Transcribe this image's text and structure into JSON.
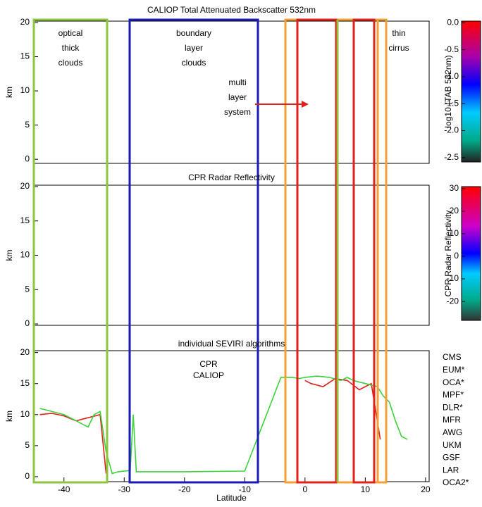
{
  "charts": [
    {
      "type": "line",
      "title": "CALIOP Total Attenuated Backscatter 532nm",
      "ylabel": "km",
      "xlim": [
        -45,
        20.6
      ],
      "ylim": [
        -0.6,
        20.2
      ],
      "yticks": [
        0,
        5,
        10,
        15,
        20
      ],
      "colorbar": {
        "label": "log10 (TAB 532nm)",
        "lim": [
          -2.58,
          0.03
        ],
        "ticks": [
          {
            "value": 0,
            "label": "0.0"
          },
          -0.5,
          {
            "value": -1,
            "label": "-1.0"
          },
          -1.5,
          {
            "value": -2,
            "label": "-2.0"
          },
          -2.5
        ]
      },
      "annotations": [
        {
          "lines": [
            "optical",
            "thick",
            "clouds"
          ],
          "color": "#8cc63f"
        },
        {
          "lines": [
            "boundary",
            "layer",
            "clouds"
          ],
          "color": "#1a1ab8"
        },
        {
          "lines": [
            "multi",
            "layer",
            "system"
          ],
          "color": "#e0201a"
        },
        {
          "lines": [
            "thin",
            "cirrus"
          ],
          "color": "#f5a030"
        }
      ]
    },
    {
      "type": "line",
      "title": "CPR Radar Reflectivity",
      "ylabel": "km",
      "xlim": [
        -45,
        20.6
      ],
      "ylim": [
        -0.2,
        20.2
      ],
      "yticks": [
        0,
        5,
        10,
        15,
        20
      ],
      "colorbar": {
        "label": "CPR Radar Reflectivity",
        "lim": [
          -28.4,
          30.9
        ],
        "ticks": [
          30,
          20,
          10,
          0,
          -10,
          -20
        ]
      }
    },
    {
      "type": "line",
      "title": "individual SEVIRI algorithms",
      "ylabel": "km",
      "xlabel": "Latitude",
      "xlim": [
        -45,
        20.6
      ],
      "ylim": [
        -0.8,
        20.3
      ],
      "yticks": [
        0,
        5,
        10,
        15,
        20
      ],
      "xticks": [
        -40,
        -30,
        -20,
        -10,
        0,
        10,
        20
      ],
      "series": [
        {
          "name": "CPR",
          "color": "#e0201a",
          "x": [
            -44,
            -42,
            -40,
            -38,
            -36,
            -34,
            -33,
            -20,
            0,
            1,
            3,
            5,
            7,
            9,
            11,
            12.5
          ],
          "values": [
            10,
            10.2,
            9.8,
            9,
            9.5,
            10,
            0.5,
            null,
            15.5,
            15,
            14.5,
            15.8,
            15.5,
            14,
            15,
            6
          ]
        },
        {
          "name": "CALIOP",
          "color": "#3cd23c",
          "x": [
            -44,
            -42,
            -40,
            -38,
            -36,
            -35,
            -34,
            -33,
            -32,
            -31,
            -29,
            -28.5,
            -28,
            -20,
            -10,
            -4,
            -2,
            -1,
            0,
            2,
            4,
            6,
            7,
            8,
            10,
            12,
            13,
            14,
            15,
            16,
            17
          ],
          "values": [
            11,
            10.5,
            10,
            9,
            8,
            10,
            10.5,
            4,
            0.5,
            0.8,
            1,
            10,
            0.8,
            0.8,
            0.9,
            16,
            16,
            15.8,
            16,
            16.2,
            16,
            15.5,
            16,
            15.5,
            15,
            14.5,
            13,
            12,
            9,
            6.5,
            6
          ]
        }
      ],
      "algorithms": [
        {
          "name": "CMS",
          "color": "#1a1aa0"
        },
        {
          "name": "EUM*",
          "color": "#00d0e0"
        },
        {
          "name": "OCA*",
          "color": "#f0a020"
        },
        {
          "name": "MPF*",
          "color": "#e020e0"
        },
        {
          "name": "DLR*",
          "color": "#106010"
        },
        {
          "name": "MFR",
          "color": "#5090e0"
        },
        {
          "name": "AWG",
          "color": "#804020"
        },
        {
          "name": "UKM",
          "color": "#7030a0"
        },
        {
          "name": "GSF",
          "color": "#d0b080"
        },
        {
          "name": "LAR",
          "color": "#90b090"
        },
        {
          "name": "OCA2*",
          "color": "#e080e0"
        }
      ]
    }
  ]
}
